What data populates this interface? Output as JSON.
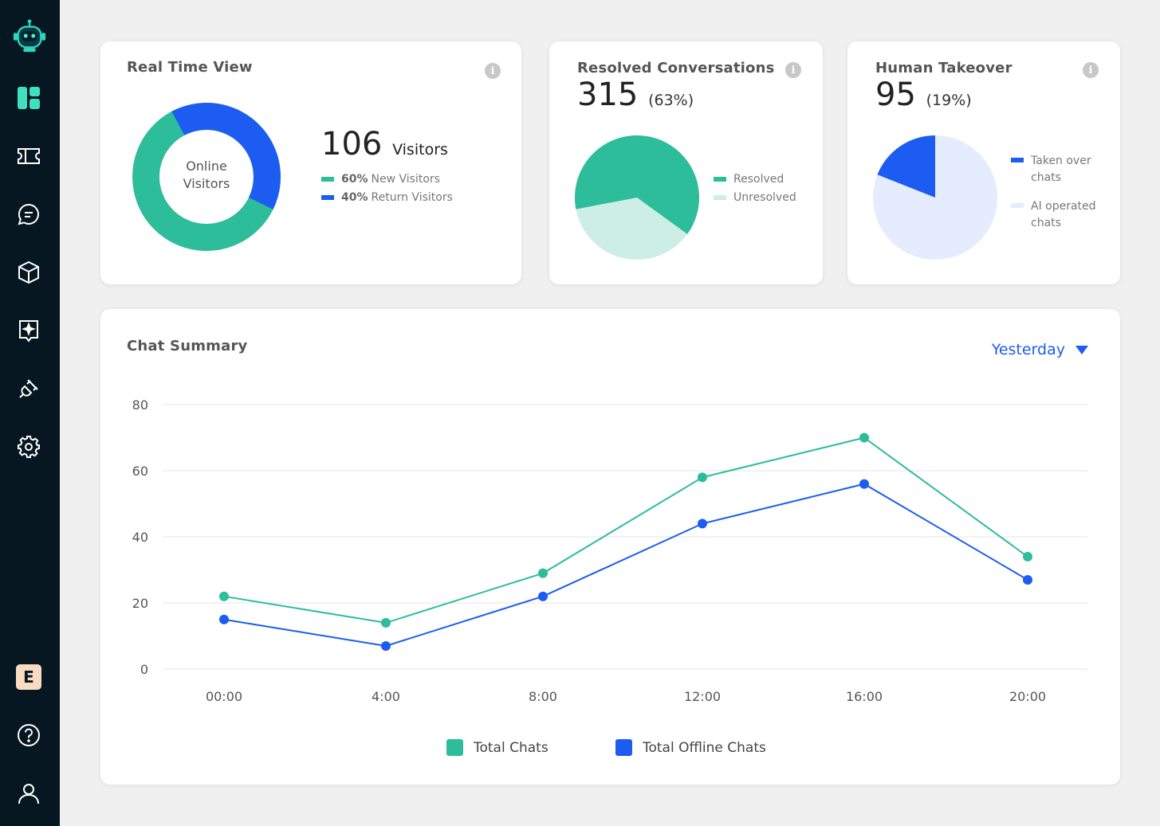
{
  "colors": {
    "teal": "#2dbd9b",
    "blue": "#1d5cf1",
    "light_teal": "#cdeee4",
    "light_blue": "#e5ecfd",
    "sidebar": "#061722"
  },
  "sidebar": {
    "items": [
      {
        "icon": "robot-logo-icon"
      },
      {
        "icon": "dashboard-icon"
      },
      {
        "icon": "ticket-icon"
      },
      {
        "icon": "chat-bubble-icon"
      },
      {
        "icon": "box-icon"
      },
      {
        "icon": "sparkle-icon"
      },
      {
        "icon": "plug-icon"
      },
      {
        "icon": "gear-icon"
      },
      {
        "icon": "help-icon"
      },
      {
        "icon": "user-icon"
      }
    ],
    "badge": "E"
  },
  "real_time": {
    "title": "Real Time View",
    "donut_label_1": "Online",
    "donut_label_2": "Visitors",
    "count": "106",
    "count_suffix": "Visitors",
    "new_pct": "60%",
    "new_label": "New Visitors",
    "return_pct": "40%",
    "return_label": "Return Visitors",
    "new_fraction": 0.6
  },
  "resolved": {
    "title": "Resolved Conversations",
    "count": "315",
    "pct": "(63%)",
    "legend_resolved": "Resolved",
    "legend_unresolved": "Unresolved",
    "fraction": 0.63
  },
  "takeover": {
    "title": "Human Takeover",
    "count": "95",
    "pct": "(19%)",
    "legend_taken_1": "Taken over",
    "legend_taken_2": "chats",
    "legend_ai_1": "AI operated",
    "legend_ai_2": "chats",
    "fraction": 0.19
  },
  "summary": {
    "title": "Chat Summary",
    "period": "Yesterday"
  },
  "chart_data": {
    "type": "line",
    "title": "Chat Summary",
    "x": [
      "00:00",
      "4:00",
      "8:00",
      "12:00",
      "16:00",
      "20:00"
    ],
    "yticks": [
      "80",
      "60",
      "40",
      "20",
      "0"
    ],
    "ylim": [
      0,
      80
    ],
    "grid": true,
    "legend": "bottom",
    "series": [
      {
        "name": "Total Chats",
        "color": "#2dbd9b",
        "values": [
          22,
          14,
          29,
          58,
          70,
          34
        ]
      },
      {
        "name": "Total Offline Chats",
        "color": "#1d5cf1",
        "values": [
          15,
          7,
          22,
          44,
          56,
          27
        ]
      }
    ]
  }
}
